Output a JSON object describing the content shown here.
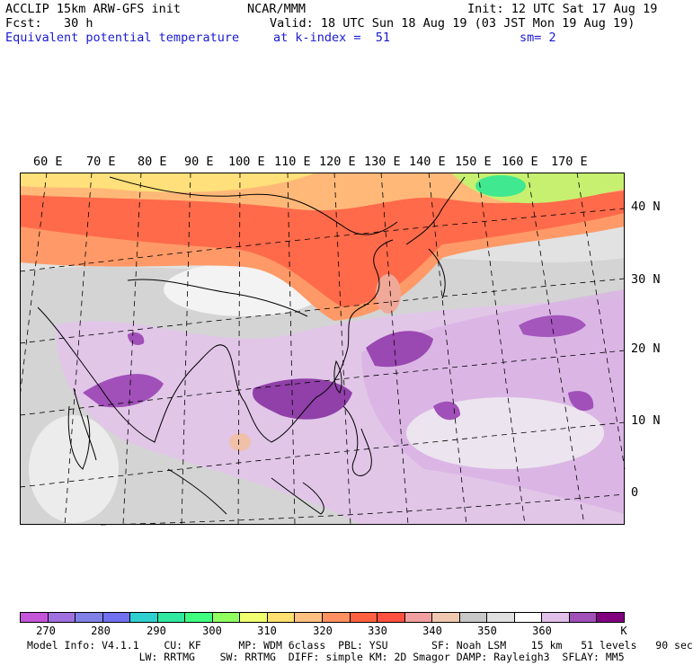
{
  "header": {
    "line1_left": "ACCLIP 15km ARW-GFS init",
    "line1_center": "NCAR/MMM",
    "line1_right": "Init: 12 UTC Sat 17 Aug 19",
    "line2_left": "Fcst:   30 h",
    "line2_right": "Valid: 18 UTC Sun 18 Aug 19 (03 JST Mon 19 Aug 19)",
    "line3_field": "Equivalent potential temperature",
    "line3_level": "at k-index =  51",
    "line3_smooth": "sm= 2"
  },
  "map": {
    "lon_labels": [
      "60 E",
      "70 E",
      "80 E",
      "90 E",
      "100 E",
      "110 E",
      "120 E",
      "130 E",
      "140 E",
      "150 E",
      "160 E",
      "170 E"
    ],
    "lat_labels": [
      "40 N",
      "30 N",
      "20 N",
      "10 N",
      "0"
    ]
  },
  "colorbar": {
    "unit": "K",
    "tick_labels": [
      "270",
      "280",
      "290",
      "300",
      "310",
      "320",
      "330",
      "340",
      "350",
      "360"
    ],
    "colors": [
      "#c455d8",
      "#a070e0",
      "#8080e8",
      "#7070f0",
      "#30d0d0",
      "#30e8a0",
      "#40ff80",
      "#90ff60",
      "#f0ff70",
      "#ffe070",
      "#ffc080",
      "#ff9060",
      "#ff6040",
      "#ff5040",
      "#f0a0a0",
      "#f0c8b0",
      "#c8c8c8",
      "#e0e0e0",
      "#ffffff",
      "#e0c0e8",
      "#a050b8",
      "#800080"
    ]
  },
  "footer": {
    "line1": "Model Info: V4.1.1    CU: KF      MP: WDM 6class  PBL: YSU       SF: Noah LSM    15 km   51 levels   90 sec",
    "line2": "     LW: RRTMG    SW: RRTMG  DIFF: simple KM: 2D Smagor DAMP: Rayleigh3  SFLAY: MM5"
  }
}
